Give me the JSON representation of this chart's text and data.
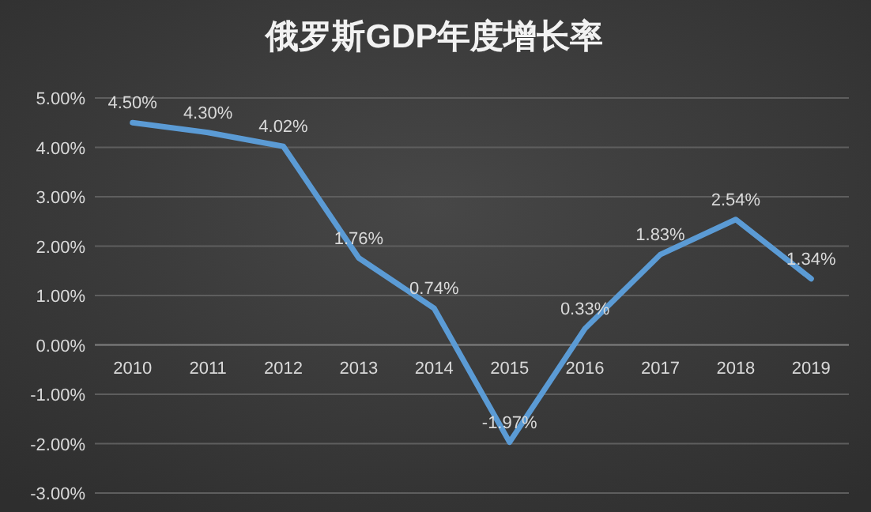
{
  "chart_data": {
    "type": "line",
    "title": "俄罗斯GDP年度增长率",
    "categories": [
      "2010",
      "2011",
      "2012",
      "2013",
      "2014",
      "2015",
      "2016",
      "2017",
      "2018",
      "2019"
    ],
    "values": [
      4.5,
      4.3,
      4.02,
      1.76,
      0.74,
      -1.97,
      0.33,
      1.83,
      2.54,
      1.34
    ],
    "value_labels": [
      "4.50%",
      "4.30%",
      "4.02%",
      "1.76%",
      "0.74%",
      "-1.97%",
      "0.33%",
      "1.83%",
      "2.54%",
      "1.34%"
    ],
    "color": "#5b9bd5",
    "ylim": [
      -3,
      5
    ],
    "yticks": [
      {
        "value": 5,
        "label": "5.00%"
      },
      {
        "value": 4,
        "label": "4.00%"
      },
      {
        "value": 3,
        "label": "3.00%"
      },
      {
        "value": 2,
        "label": "2.00%"
      },
      {
        "value": 1,
        "label": "1.00%"
      },
      {
        "value": 0,
        "label": "0.00%"
      },
      {
        "value": -1,
        "label": "-1.00%"
      },
      {
        "value": -2,
        "label": "-2.00%"
      },
      {
        "value": -3,
        "label": "-3.00%"
      }
    ],
    "grid": "y"
  }
}
